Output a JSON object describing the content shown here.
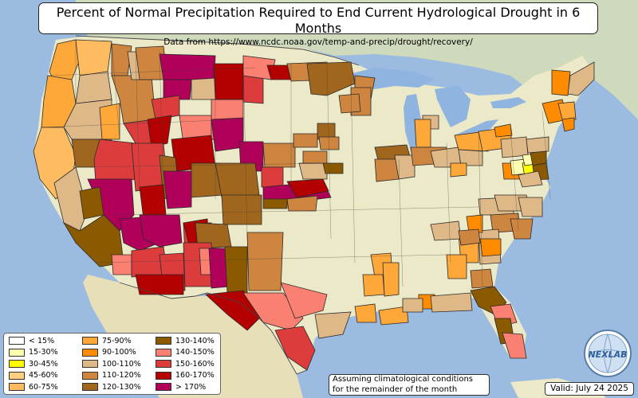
{
  "title": "Percent of Normal Precipitation Required to End Current Hydrological Drought in 6 Months",
  "subtitle": "Data from https://www.ncdc.noaa.gov/temp-and-precip/drought/recovery/",
  "note": {
    "line1": "Assuming climatological conditions",
    "line2": "for the remainder of the month"
  },
  "valid": "Valid: July 24 2025",
  "logo_text": "NEXLAB",
  "colors": {
    "ocean": "#9bbbe0",
    "land": "#ece9c8",
    "lake": "#8fb4e0",
    "border": "#2a2a2a"
  },
  "legend": [
    {
      "label": "< 15%",
      "color": "#ffffff"
    },
    {
      "label": "15-30%",
      "color": "#ffffb0"
    },
    {
      "label": "30-45%",
      "color": "#ffff00"
    },
    {
      "label": "45-60%",
      "color": "#ffd080"
    },
    {
      "label": "60-75%",
      "color": "#ffbb60"
    },
    {
      "label": "75-90%",
      "color": "#ffa83a"
    },
    {
      "label": "90-100%",
      "color": "#ff8c00"
    },
    {
      "label": "100-110%",
      "color": "#deb887"
    },
    {
      "label": "110-120%",
      "color": "#cd853f"
    },
    {
      "label": "120-130%",
      "color": "#a0661e"
    },
    {
      "label": "130-140%",
      "color": "#8b5a00"
    },
    {
      "label": "140-150%",
      "color": "#fa8072"
    },
    {
      "label": "150-160%",
      "color": "#dc3c3c"
    },
    {
      "label": "160-170%",
      "color": "#b40000"
    },
    {
      "label": "> 170%",
      "color": "#b0005a"
    }
  ]
}
